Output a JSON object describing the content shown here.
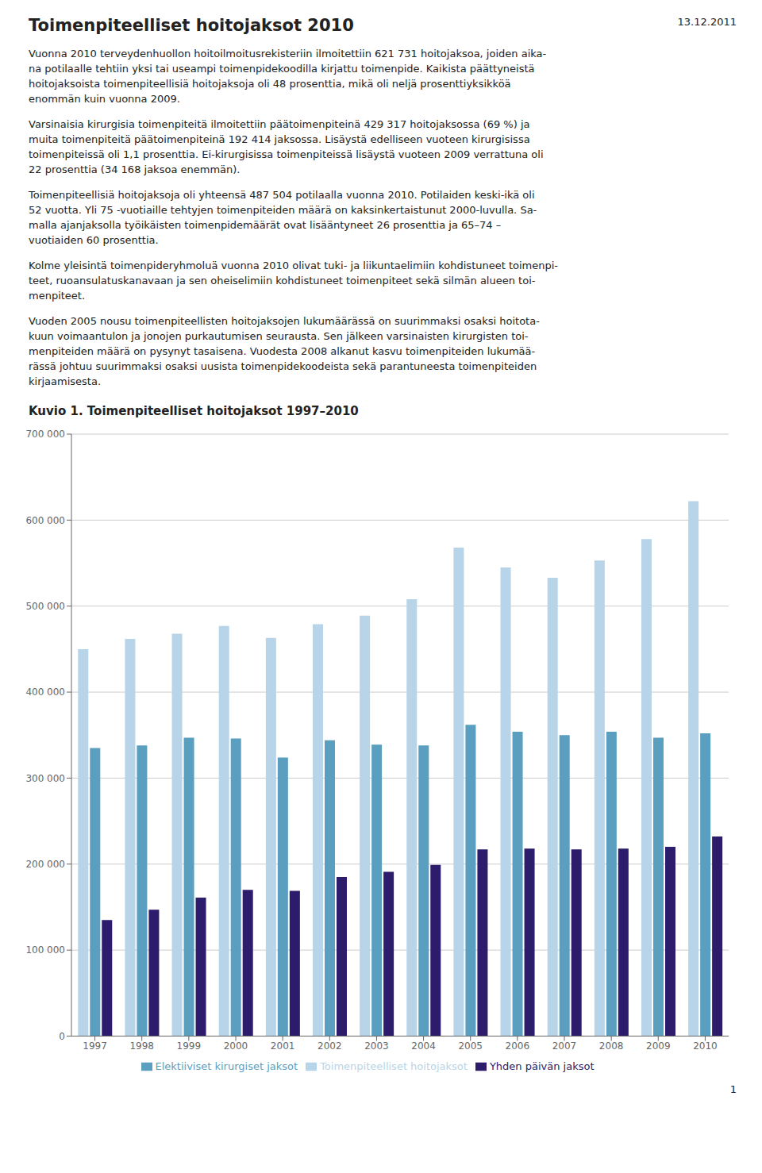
{
  "chart_data": {
    "type": "bar",
    "title": "Toimenpiteelliset hoitojaksot 2010",
    "subtitle": "Kuvio 1. Toimenpiteelliset hoitojaksot 1997–2010",
    "annotations": [
      "13.12.2011",
      "Vuonna 2010 terveydenhuollon hoitoilmoitusrekisteriin ilmoitettiin 621 731 hoitojaksoa, joiden aika-\nna potilaalle tehtiin yksi tai useampi toimenpidekoodilla kirjattu toimenpide. Kaikista päättyneistä\nhoitojaksoista toimenpiteellisiä hoitojaksoja oli 48 prosenttia, mikä oli neljä prosenttiyksikköä\nenommän kuin vuonna 2009.",
      "Varsinaisia kirurgisia toimenpiteitä ilmoitettiin päätoimenpiteinä 429 317 hoitojaksossa (69 %) ja\nmuita toimenpiteitä päätoimenpiteinä 192 414 jaksossa. Lisäystä edelliseen vuoteen kirurgisissa\ntoimenpiteissä oli 1,1 prosenttia. Ei-kirurgisissa toimenpiteissä lisäystä vuoteen 2009 verrattuna oli\n22 prosenttia (34 168 jaksoa enemmän).",
      "Toimenpiteellisiä hoitojaksoja oli yhteensä 487 504 potilaalla vuonna 2010. Potilaiden keski-ikä oli\n52 vuotta. Yli 75 -vuotiaille tehtyjen toimenpiteiden määrä on kaksinkertaistunut 2000-luvulla. Sa-\nmalla ajanjaksolla työikäisten toimenpidemäärät ovat lisääntyneet 26 prosenttia ja 65–74 –\nvuotiaiden 60 prosenttia.",
      "Kolme yleisintä toimenpideryhmoluä vuonna 2010 olivat tuki- ja liikuntaelimiin kohdistuneet toimenpi-\nteet, ruoansulatuskanavaan ja sen oheiselimiin kohdistuneet toimenpiteet sekä silmän alueen toi-\nmenpiteet.",
      "Vuoden 2005 nousu toimenpiteellisten hoitojaksojen lukumäärässä on suurimmaksi osaksi hoitota-\nkuun voimaantulon ja jonojen purkautumisen seurausta. Sen jälkeen varsinaisten kirurgisten toi-\nmenpiteiden määrä on pysynyt tasaisena. Vuodesta 2008 alkanut kasvu toimenpiteiden lukumää-\nrässä johtuu suurimmaksi osaksi uusista toimenpidekoodeista sekä parantuneesta toimenpiteiden\nkirjaamisesta.",
      "1"
    ],
    "categories": [
      "1997",
      "1998",
      "1999",
      "2000",
      "2001",
      "2002",
      "2003",
      "2004",
      "2005",
      "2006",
      "2007",
      "2008",
      "2009",
      "2010"
    ],
    "series": [
      {
        "name": "Toimenpiteelliset hoitojaksot",
        "color": "#b8d4e8",
        "values": [
          450000,
          462000,
          468000,
          477000,
          463000,
          479000,
          489000,
          508000,
          568000,
          545000,
          533000,
          553000,
          578000,
          622000
        ]
      },
      {
        "name": "Elektiiviset kirurgiset jaksot",
        "color": "#5b9fc0",
        "values": [
          335000,
          338000,
          347000,
          346000,
          324000,
          344000,
          339000,
          338000,
          362000,
          354000,
          350000,
          354000,
          347000,
          352000
        ]
      },
      {
        "name": "Yhden päivän jaksot",
        "color": "#2d1b6b",
        "values": [
          135000,
          147000,
          161000,
          170000,
          169000,
          185000,
          191000,
          199000,
          217000,
          218000,
          217000,
          218000,
          220000,
          232000
        ]
      }
    ],
    "ylim": [
      0,
      700000
    ],
    "yticks": [
      0,
      {
        "value": 100000,
        "label": "100 000"
      },
      {
        "value": 200000,
        "label": "200 000"
      },
      {
        "value": 300000,
        "label": "300 000"
      },
      {
        "value": 400000,
        "label": "400 000"
      },
      {
        "value": 500000,
        "label": "500 000"
      },
      {
        "value": 600000,
        "label": "600 000"
      },
      {
        "value": 700000,
        "label": "700 000"
      }
    ],
    "grid": true,
    "legend": "bottom"
  }
}
